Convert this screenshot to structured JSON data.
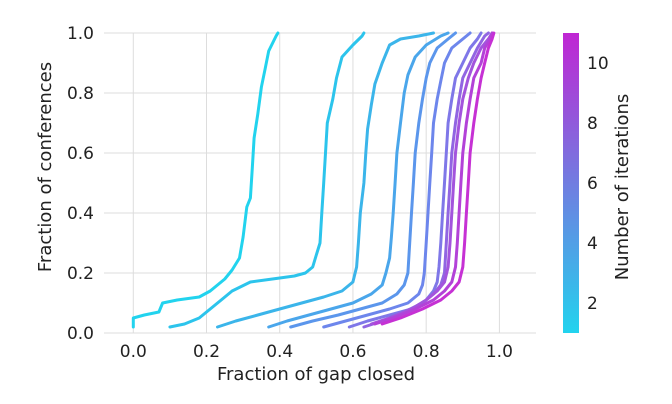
{
  "chart_data": {
    "type": "line",
    "xlabel": "Fraction of gap closed",
    "ylabel": "Fraction of conferences",
    "xlim": [
      -0.08,
      1.1
    ],
    "ylim": [
      0,
      1
    ],
    "xticks": [
      "0.0",
      "0.2",
      "0.4",
      "0.6",
      "0.8",
      "1.0"
    ],
    "yticks": [
      "0.0",
      "0.2",
      "0.4",
      "0.6",
      "0.8",
      "1.0"
    ],
    "grid": true,
    "colorbar": {
      "label": "Number of iterations",
      "range": [
        1,
        11
      ],
      "ticks": [
        "2",
        "4",
        "6",
        "8",
        "10"
      ],
      "colors": [
        "#22d3ee",
        "#c026d3"
      ]
    },
    "series": [
      {
        "iterations": 1,
        "color": "#22d3ee",
        "points": [
          [
            0.0,
            0.02
          ],
          [
            0.0,
            0.05
          ],
          [
            0.03,
            0.06
          ],
          [
            0.07,
            0.07
          ],
          [
            0.08,
            0.1
          ],
          [
            0.12,
            0.11
          ],
          [
            0.18,
            0.12
          ],
          [
            0.21,
            0.14
          ],
          [
            0.25,
            0.18
          ],
          [
            0.27,
            0.21
          ],
          [
            0.29,
            0.25
          ],
          [
            0.3,
            0.32
          ],
          [
            0.31,
            0.42
          ],
          [
            0.32,
            0.45
          ],
          [
            0.325,
            0.55
          ],
          [
            0.33,
            0.65
          ],
          [
            0.34,
            0.73
          ],
          [
            0.35,
            0.82
          ],
          [
            0.36,
            0.88
          ],
          [
            0.37,
            0.94
          ],
          [
            0.39,
            0.99
          ],
          [
            0.395,
            1.0
          ]
        ]
      },
      {
        "iterations": 2,
        "color": "#2cc4ec",
        "points": [
          [
            0.1,
            0.02
          ],
          [
            0.14,
            0.03
          ],
          [
            0.18,
            0.05
          ],
          [
            0.21,
            0.08
          ],
          [
            0.24,
            0.11
          ],
          [
            0.27,
            0.14
          ],
          [
            0.32,
            0.17
          ],
          [
            0.38,
            0.18
          ],
          [
            0.44,
            0.19
          ],
          [
            0.47,
            0.2
          ],
          [
            0.49,
            0.22
          ],
          [
            0.5,
            0.26
          ],
          [
            0.51,
            0.3
          ],
          [
            0.515,
            0.4
          ],
          [
            0.52,
            0.5
          ],
          [
            0.525,
            0.6
          ],
          [
            0.53,
            0.7
          ],
          [
            0.545,
            0.78
          ],
          [
            0.555,
            0.85
          ],
          [
            0.57,
            0.92
          ],
          [
            0.6,
            0.96
          ],
          [
            0.625,
            0.99
          ],
          [
            0.63,
            1.0
          ]
        ]
      },
      {
        "iterations": 3,
        "color": "#3bb5ea",
        "points": [
          [
            0.23,
            0.02
          ],
          [
            0.28,
            0.04
          ],
          [
            0.34,
            0.06
          ],
          [
            0.4,
            0.08
          ],
          [
            0.46,
            0.1
          ],
          [
            0.52,
            0.12
          ],
          [
            0.57,
            0.14
          ],
          [
            0.6,
            0.17
          ],
          [
            0.61,
            0.22
          ],
          [
            0.615,
            0.3
          ],
          [
            0.62,
            0.4
          ],
          [
            0.63,
            0.5
          ],
          [
            0.635,
            0.6
          ],
          [
            0.64,
            0.68
          ],
          [
            0.65,
            0.76
          ],
          [
            0.66,
            0.83
          ],
          [
            0.68,
            0.9
          ],
          [
            0.7,
            0.96
          ],
          [
            0.73,
            0.98
          ],
          [
            0.78,
            0.99
          ],
          [
            0.82,
            1.0
          ]
        ]
      },
      {
        "iterations": 4,
        "color": "#4aa6eb",
        "points": [
          [
            0.37,
            0.02
          ],
          [
            0.42,
            0.04
          ],
          [
            0.48,
            0.06
          ],
          [
            0.54,
            0.08
          ],
          [
            0.6,
            0.1
          ],
          [
            0.65,
            0.13
          ],
          [
            0.68,
            0.16
          ],
          [
            0.69,
            0.2
          ],
          [
            0.7,
            0.25
          ],
          [
            0.705,
            0.32
          ],
          [
            0.71,
            0.4
          ],
          [
            0.715,
            0.5
          ],
          [
            0.72,
            0.6
          ],
          [
            0.73,
            0.7
          ],
          [
            0.74,
            0.8
          ],
          [
            0.75,
            0.86
          ],
          [
            0.77,
            0.92
          ],
          [
            0.8,
            0.96
          ],
          [
            0.84,
            0.99
          ],
          [
            0.86,
            1.0
          ]
        ]
      },
      {
        "iterations": 5,
        "color": "#5b96ec",
        "points": [
          [
            0.43,
            0.02
          ],
          [
            0.49,
            0.04
          ],
          [
            0.56,
            0.06
          ],
          [
            0.62,
            0.08
          ],
          [
            0.68,
            0.1
          ],
          [
            0.72,
            0.13
          ],
          [
            0.74,
            0.16
          ],
          [
            0.75,
            0.2
          ],
          [
            0.755,
            0.3
          ],
          [
            0.76,
            0.4
          ],
          [
            0.765,
            0.5
          ],
          [
            0.77,
            0.6
          ],
          [
            0.78,
            0.7
          ],
          [
            0.79,
            0.78
          ],
          [
            0.8,
            0.85
          ],
          [
            0.81,
            0.9
          ],
          [
            0.83,
            0.95
          ],
          [
            0.86,
            0.98
          ],
          [
            0.88,
            1.0
          ]
        ]
      },
      {
        "iterations": 6,
        "color": "#6d86ec",
        "points": [
          [
            0.52,
            0.02
          ],
          [
            0.58,
            0.04
          ],
          [
            0.64,
            0.06
          ],
          [
            0.7,
            0.08
          ],
          [
            0.75,
            0.1
          ],
          [
            0.78,
            0.13
          ],
          [
            0.79,
            0.16
          ],
          [
            0.795,
            0.2
          ],
          [
            0.8,
            0.3
          ],
          [
            0.805,
            0.4
          ],
          [
            0.81,
            0.5
          ],
          [
            0.815,
            0.6
          ],
          [
            0.82,
            0.7
          ],
          [
            0.83,
            0.78
          ],
          [
            0.84,
            0.84
          ],
          [
            0.85,
            0.9
          ],
          [
            0.87,
            0.95
          ],
          [
            0.9,
            0.98
          ],
          [
            0.92,
            1.0
          ]
        ]
      },
      {
        "iterations": 7,
        "color": "#7f77e8",
        "points": [
          [
            0.59,
            0.02
          ],
          [
            0.64,
            0.04
          ],
          [
            0.7,
            0.06
          ],
          [
            0.76,
            0.08
          ],
          [
            0.8,
            0.11
          ],
          [
            0.82,
            0.14
          ],
          [
            0.83,
            0.17
          ],
          [
            0.835,
            0.22
          ],
          [
            0.84,
            0.3
          ],
          [
            0.845,
            0.4
          ],
          [
            0.85,
            0.5
          ],
          [
            0.855,
            0.6
          ],
          [
            0.86,
            0.7
          ],
          [
            0.87,
            0.78
          ],
          [
            0.88,
            0.85
          ],
          [
            0.9,
            0.9
          ],
          [
            0.92,
            0.95
          ],
          [
            0.94,
            0.98
          ],
          [
            0.95,
            1.0
          ]
        ]
      },
      {
        "iterations": 8,
        "color": "#9165e2",
        "points": [
          [
            0.63,
            0.02
          ],
          [
            0.68,
            0.04
          ],
          [
            0.74,
            0.07
          ],
          [
            0.79,
            0.1
          ],
          [
            0.82,
            0.13
          ],
          [
            0.84,
            0.16
          ],
          [
            0.85,
            0.2
          ],
          [
            0.855,
            0.3
          ],
          [
            0.86,
            0.4
          ],
          [
            0.865,
            0.5
          ],
          [
            0.87,
            0.6
          ],
          [
            0.88,
            0.7
          ],
          [
            0.89,
            0.78
          ],
          [
            0.9,
            0.85
          ],
          [
            0.92,
            0.9
          ],
          [
            0.94,
            0.95
          ],
          [
            0.96,
            0.99
          ],
          [
            0.97,
            1.0
          ]
        ]
      },
      {
        "iterations": 9,
        "color": "#a354dd",
        "points": [
          [
            0.65,
            0.03
          ],
          [
            0.7,
            0.05
          ],
          [
            0.76,
            0.08
          ],
          [
            0.8,
            0.11
          ],
          [
            0.83,
            0.14
          ],
          [
            0.85,
            0.17
          ],
          [
            0.86,
            0.22
          ],
          [
            0.865,
            0.3
          ],
          [
            0.87,
            0.4
          ],
          [
            0.875,
            0.5
          ],
          [
            0.88,
            0.6
          ],
          [
            0.89,
            0.7
          ],
          [
            0.9,
            0.78
          ],
          [
            0.915,
            0.85
          ],
          [
            0.93,
            0.9
          ],
          [
            0.95,
            0.95
          ],
          [
            0.97,
            0.98
          ],
          [
            0.98,
            1.0
          ]
        ]
      },
      {
        "iterations": 10,
        "color": "#b342d8",
        "points": [
          [
            0.66,
            0.03
          ],
          [
            0.71,
            0.05
          ],
          [
            0.77,
            0.08
          ],
          [
            0.82,
            0.11
          ],
          [
            0.85,
            0.14
          ],
          [
            0.87,
            0.17
          ],
          [
            0.88,
            0.22
          ],
          [
            0.885,
            0.3
          ],
          [
            0.89,
            0.4
          ],
          [
            0.895,
            0.5
          ],
          [
            0.9,
            0.6
          ],
          [
            0.91,
            0.7
          ],
          [
            0.92,
            0.78
          ],
          [
            0.93,
            0.85
          ],
          [
            0.95,
            0.9
          ],
          [
            0.96,
            0.95
          ],
          [
            0.975,
            0.98
          ],
          [
            0.98,
            1.0
          ]
        ]
      },
      {
        "iterations": 11,
        "color": "#c631d4",
        "points": [
          [
            0.68,
            0.03
          ],
          [
            0.73,
            0.05
          ],
          [
            0.79,
            0.08
          ],
          [
            0.84,
            0.11
          ],
          [
            0.87,
            0.14
          ],
          [
            0.89,
            0.17
          ],
          [
            0.9,
            0.22
          ],
          [
            0.905,
            0.3
          ],
          [
            0.91,
            0.4
          ],
          [
            0.915,
            0.5
          ],
          [
            0.92,
            0.6
          ],
          [
            0.93,
            0.7
          ],
          [
            0.94,
            0.78
          ],
          [
            0.95,
            0.85
          ],
          [
            0.96,
            0.9
          ],
          [
            0.97,
            0.95
          ],
          [
            0.98,
            0.98
          ],
          [
            0.985,
            1.0
          ]
        ]
      }
    ]
  }
}
